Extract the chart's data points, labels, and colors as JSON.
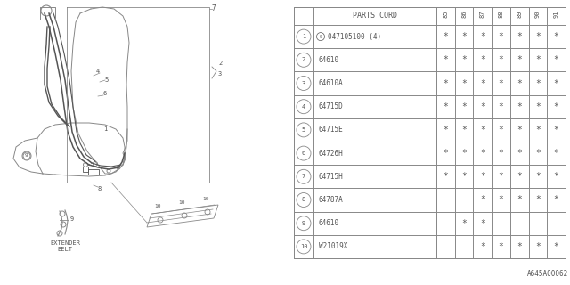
{
  "bg_color": "#ffffff",
  "line_color": "#888888",
  "dark_color": "#555555",
  "col_header": "PARTS CORD",
  "year_cols": [
    "85",
    "86",
    "87",
    "88",
    "89",
    "90",
    "91"
  ],
  "rows": [
    {
      "num": "1",
      "special": true,
      "part": "047105100 (4)",
      "marks": [
        1,
        1,
        1,
        1,
        1,
        1,
        1
      ]
    },
    {
      "num": "2",
      "special": false,
      "part": "64610",
      "marks": [
        1,
        1,
        1,
        1,
        1,
        1,
        1
      ]
    },
    {
      "num": "3",
      "special": false,
      "part": "64610A",
      "marks": [
        1,
        1,
        1,
        1,
        1,
        1,
        1
      ]
    },
    {
      "num": "4",
      "special": false,
      "part": "64715D",
      "marks": [
        1,
        1,
        1,
        1,
        1,
        1,
        1
      ]
    },
    {
      "num": "5",
      "special": false,
      "part": "64715E",
      "marks": [
        1,
        1,
        1,
        1,
        1,
        1,
        1
      ]
    },
    {
      "num": "6",
      "special": false,
      "part": "64726H",
      "marks": [
        1,
        1,
        1,
        1,
        1,
        1,
        1
      ]
    },
    {
      "num": "7",
      "special": false,
      "part": "64715H",
      "marks": [
        1,
        1,
        1,
        1,
        1,
        1,
        1
      ]
    },
    {
      "num": "8",
      "special": false,
      "part": "64787A",
      "marks": [
        0,
        0,
        1,
        1,
        1,
        1,
        1
      ]
    },
    {
      "num": "9",
      "special": false,
      "part": "64610",
      "marks": [
        0,
        1,
        1,
        0,
        0,
        0,
        0
      ]
    },
    {
      "num": "10",
      "special": false,
      "part": "W21019X",
      "marks": [
        0,
        0,
        1,
        1,
        1,
        1,
        1
      ]
    }
  ],
  "footer_code": "A645A00062",
  "extender_label": "EXTENDER\nBELT"
}
